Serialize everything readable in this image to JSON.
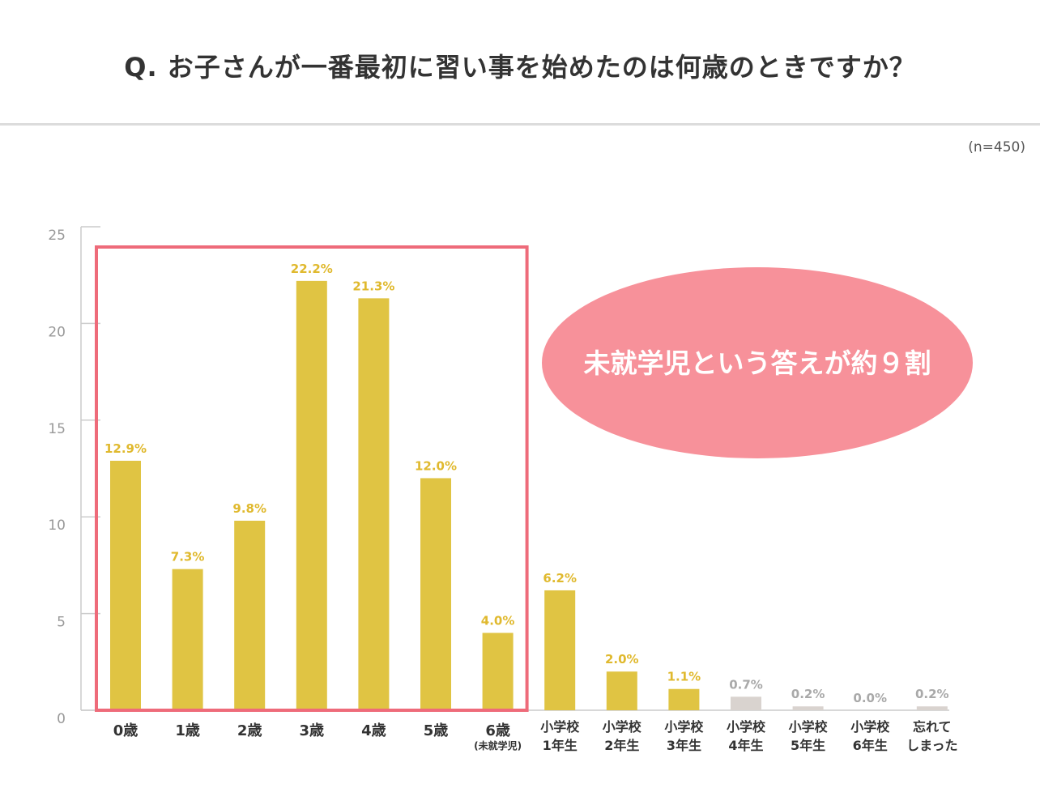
{
  "question": "Q. お子さんが一番最初に習い事を始めたのは何歳のときですか？",
  "sample_size": "(n=450)",
  "callout": "未就学児という答えが約９割",
  "colors": {
    "bar": "#e0c443",
    "bar_minor": "#d9d3cf",
    "label_major": "#e0b92e",
    "label_minor": "#a9a9a9",
    "highlight_box": "#ee6b7a",
    "callout_fill": "#f7919a",
    "axis": "#cccccc"
  },
  "chart_data": {
    "type": "bar",
    "title": "Q. お子さんが一番最初に習い事を始めたのは何歳のときですか？",
    "ylim": [
      0,
      25
    ],
    "yticks": [
      0,
      5,
      10,
      15,
      20,
      25
    ],
    "grid": false,
    "categories": [
      [
        "0歳"
      ],
      [
        "1歳"
      ],
      [
        "2歳"
      ],
      [
        "3歳"
      ],
      [
        "4歳"
      ],
      [
        "5歳"
      ],
      [
        "6歳",
        "(未就学児)"
      ],
      [
        "小学校",
        "1年生"
      ],
      [
        "小学校",
        "2年生"
      ],
      [
        "小学校",
        "3年生"
      ],
      [
        "小学校",
        "4年生"
      ],
      [
        "小学校",
        "5年生"
      ],
      [
        "小学校",
        "6年生"
      ],
      [
        "忘れて",
        "しまった"
      ]
    ],
    "values": [
      12.9,
      7.3,
      9.8,
      22.2,
      21.3,
      12.0,
      4.0,
      6.2,
      2.0,
      1.1,
      0.7,
      0.2,
      0.0,
      0.2
    ],
    "labels": [
      "12.9%",
      "7.3%",
      "9.8%",
      "22.2%",
      "21.3%",
      "12.0%",
      "4.0%",
      "6.2%",
      "2.0%",
      "1.1%",
      "0.7%",
      "0.2%",
      "0.0%",
      "0.2%"
    ],
    "highlighted_group": [
      0,
      6
    ],
    "minor_group_start": 10
  }
}
